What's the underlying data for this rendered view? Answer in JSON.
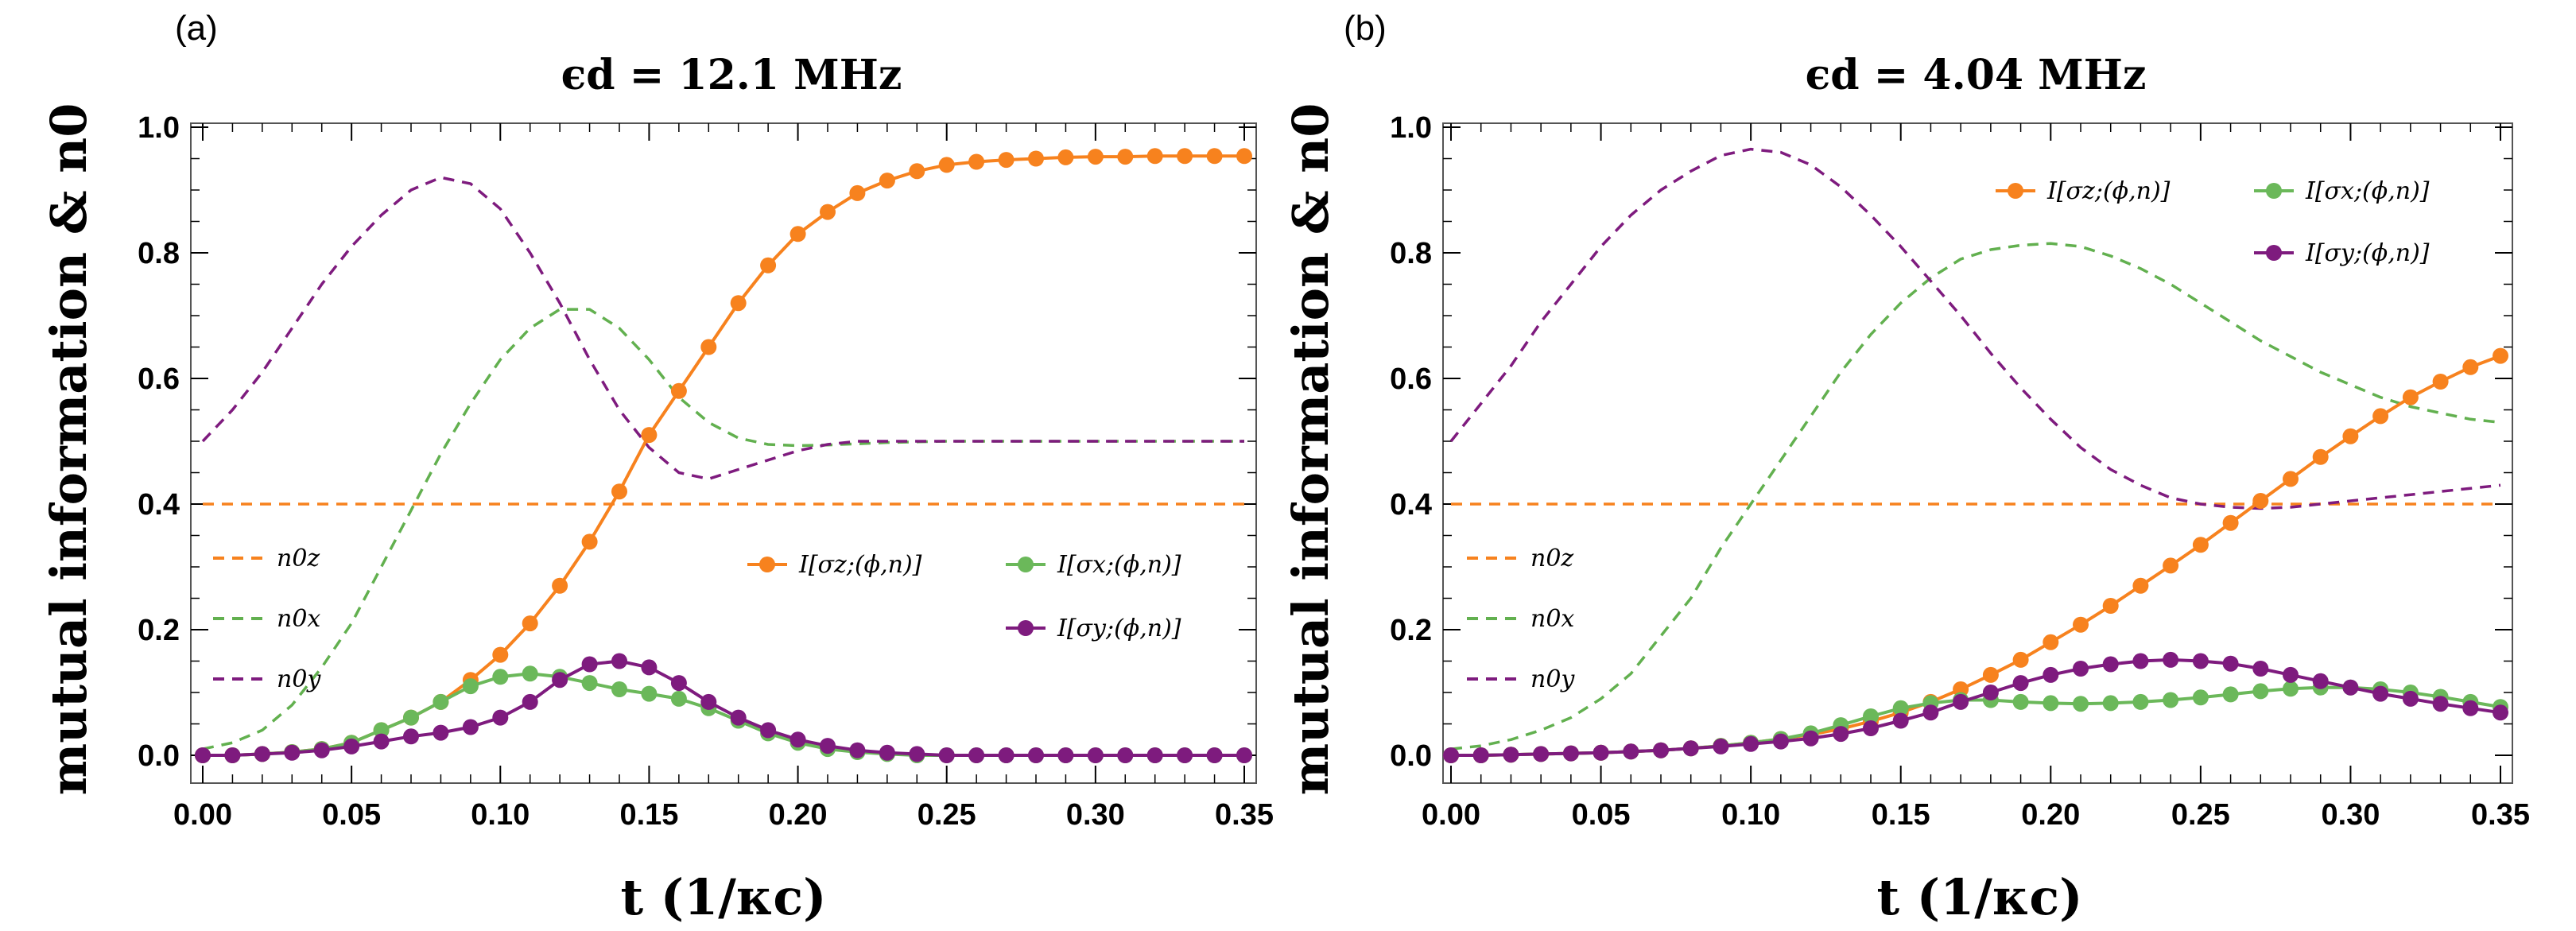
{
  "figure": {
    "colors": {
      "orange": "#F7821E",
      "green": "#6BB85A",
      "green_dash": "#62B04F",
      "purple": "#7E1B7E",
      "axis": "#000000",
      "frame": "#555555"
    }
  },
  "chart_data": [
    {
      "type": "line",
      "panel_label": "(a)",
      "title": "ϵd = 12.1 MHz",
      "xlabel": "t (1/κc)",
      "ylabel": "mutual information & n0",
      "xlim": [
        0,
        0.35
      ],
      "ylim": [
        0,
        1.0
      ],
      "xticks": [
        0.0,
        0.05,
        0.1,
        0.15,
        0.2,
        0.25,
        0.3,
        0.35
      ],
      "xtick_labels": [
        "0.00",
        "0.05",
        "0.10",
        "0.15",
        "0.20",
        "0.25",
        "0.30",
        "0.35"
      ],
      "yticks": [
        0.0,
        0.2,
        0.4,
        0.6,
        0.8,
        1.0
      ],
      "ytick_labels": [
        "0.0",
        "0.2",
        "0.4",
        "0.6",
        "0.8",
        "1.0"
      ],
      "legend_dashed": [
        "n0z",
        "n0x",
        "n0y"
      ],
      "legend_markers": [
        "I[σz;(ϕ,n)]",
        "I[σx;(ϕ,n)]",
        "I[σy;(ϕ,n)]"
      ],
      "x": [
        0.0,
        0.01,
        0.02,
        0.03,
        0.04,
        0.05,
        0.06,
        0.07,
        0.08,
        0.09,
        0.1,
        0.11,
        0.12,
        0.13,
        0.14,
        0.15,
        0.16,
        0.17,
        0.18,
        0.19,
        0.2,
        0.21,
        0.22,
        0.23,
        0.24,
        0.25,
        0.26,
        0.27,
        0.28,
        0.29,
        0.3,
        0.31,
        0.32,
        0.33,
        0.34,
        0.35
      ],
      "series": [
        {
          "name": "I[σz;(ϕ,n)]",
          "color": "orange",
          "style": "marker-line",
          "values": [
            0,
            0,
            0.002,
            0.005,
            0.01,
            0.02,
            0.04,
            0.06,
            0.085,
            0.12,
            0.16,
            0.21,
            0.27,
            0.34,
            0.42,
            0.51,
            0.58,
            0.65,
            0.72,
            0.78,
            0.83,
            0.865,
            0.895,
            0.915,
            0.93,
            0.94,
            0.945,
            0.948,
            0.95,
            0.952,
            0.953,
            0.953,
            0.954,
            0.954,
            0.954,
            0.954
          ]
        },
        {
          "name": "I[σx;(ϕ,n)]",
          "color": "green",
          "style": "marker-line",
          "values": [
            0,
            0,
            0.002,
            0.005,
            0.01,
            0.02,
            0.04,
            0.06,
            0.085,
            0.11,
            0.125,
            0.13,
            0.125,
            0.115,
            0.105,
            0.098,
            0.09,
            0.075,
            0.055,
            0.035,
            0.02,
            0.01,
            0.005,
            0.002,
            0,
            0,
            0,
            0,
            0,
            0,
            0,
            0,
            0,
            0,
            0,
            0
          ]
        },
        {
          "name": "I[σy;(ϕ,n)]",
          "color": "purple",
          "style": "marker-line",
          "values": [
            0,
            0,
            0.002,
            0.004,
            0.008,
            0.014,
            0.022,
            0.03,
            0.036,
            0.045,
            0.06,
            0.085,
            0.12,
            0.145,
            0.15,
            0.14,
            0.115,
            0.085,
            0.06,
            0.04,
            0.025,
            0.015,
            0.008,
            0.004,
            0.002,
            0,
            0,
            0,
            0,
            0,
            0,
            0,
            0,
            0,
            0,
            0
          ]
        },
        {
          "name": "n0z",
          "color": "orange",
          "style": "dashed",
          "values": [
            0.4,
            0.4,
            0.4,
            0.4,
            0.4,
            0.4,
            0.4,
            0.4,
            0.4,
            0.4,
            0.4,
            0.4,
            0.4,
            0.4,
            0.4,
            0.4,
            0.4,
            0.4,
            0.4,
            0.4,
            0.4,
            0.4,
            0.4,
            0.4,
            0.4,
            0.4,
            0.4,
            0.4,
            0.4,
            0.4,
            0.4,
            0.4,
            0.4,
            0.4,
            0.4,
            0.4
          ]
        },
        {
          "name": "n0x",
          "color": "green_dash",
          "style": "dashed",
          "values": [
            0.01,
            0.02,
            0.04,
            0.08,
            0.14,
            0.21,
            0.3,
            0.39,
            0.48,
            0.56,
            0.63,
            0.68,
            0.71,
            0.71,
            0.68,
            0.63,
            0.57,
            0.53,
            0.505,
            0.495,
            0.493,
            0.494,
            0.496,
            0.498,
            0.499,
            0.5,
            0.5,
            0.5,
            0.5,
            0.5,
            0.5,
            0.5,
            0.5,
            0.5,
            0.5,
            0.5
          ]
        },
        {
          "name": "n0y",
          "color": "purple",
          "style": "dashed",
          "values": [
            0.5,
            0.55,
            0.61,
            0.68,
            0.75,
            0.81,
            0.86,
            0.9,
            0.92,
            0.91,
            0.87,
            0.8,
            0.72,
            0.63,
            0.55,
            0.49,
            0.45,
            0.44,
            0.455,
            0.47,
            0.485,
            0.495,
            0.5,
            0.5,
            0.5,
            0.5,
            0.5,
            0.5,
            0.5,
            0.5,
            0.5,
            0.5,
            0.5,
            0.5,
            0.5,
            0.5
          ]
        }
      ]
    },
    {
      "type": "line",
      "panel_label": "(b)",
      "title": "ϵd = 4.04 MHz",
      "xlabel": "t (1/κc)",
      "ylabel": "mutual information & n0",
      "xlim": [
        0,
        0.35
      ],
      "ylim": [
        0,
        1.0
      ],
      "xticks": [
        0.0,
        0.05,
        0.1,
        0.15,
        0.2,
        0.25,
        0.3,
        0.35
      ],
      "xtick_labels": [
        "0.00",
        "0.05",
        "0.10",
        "0.15",
        "0.20",
        "0.25",
        "0.30",
        "0.35"
      ],
      "yticks": [
        0.0,
        0.2,
        0.4,
        0.6,
        0.8,
        1.0
      ],
      "ytick_labels": [
        "0.0",
        "0.2",
        "0.4",
        "0.6",
        "0.8",
        "1.0"
      ],
      "legend_dashed": [
        "n0z",
        "n0x",
        "n0y"
      ],
      "legend_markers": [
        "I[σz;(ϕ,n)]",
        "I[σx;(ϕ,n)]",
        "I[σy;(ϕ,n)]"
      ],
      "x": [
        0.0,
        0.01,
        0.02,
        0.03,
        0.04,
        0.05,
        0.06,
        0.07,
        0.08,
        0.09,
        0.1,
        0.11,
        0.12,
        0.13,
        0.14,
        0.15,
        0.16,
        0.17,
        0.18,
        0.19,
        0.2,
        0.21,
        0.22,
        0.23,
        0.24,
        0.25,
        0.26,
        0.27,
        0.28,
        0.29,
        0.3,
        0.31,
        0.32,
        0.33,
        0.34,
        0.35
      ],
      "series": [
        {
          "name": "I[σz;(ϕ,n)]",
          "color": "orange",
          "style": "marker-line",
          "values": [
            0,
            0,
            0.001,
            0.002,
            0.003,
            0.004,
            0.006,
            0.008,
            0.011,
            0.015,
            0.02,
            0.026,
            0.033,
            0.042,
            0.054,
            0.068,
            0.085,
            0.105,
            0.128,
            0.152,
            0.18,
            0.208,
            0.238,
            0.27,
            0.302,
            0.335,
            0.37,
            0.405,
            0.44,
            0.475,
            0.508,
            0.54,
            0.57,
            0.595,
            0.618,
            0.636
          ]
        },
        {
          "name": "I[σx;(ϕ,n)]",
          "color": "green",
          "style": "marker-line",
          "values": [
            0,
            0,
            0.001,
            0.002,
            0.003,
            0.004,
            0.006,
            0.008,
            0.011,
            0.015,
            0.02,
            0.026,
            0.035,
            0.048,
            0.062,
            0.075,
            0.083,
            0.088,
            0.088,
            0.085,
            0.083,
            0.082,
            0.083,
            0.085,
            0.088,
            0.092,
            0.097,
            0.102,
            0.106,
            0.108,
            0.108,
            0.105,
            0.1,
            0.093,
            0.085,
            0.077
          ]
        },
        {
          "name": "I[σy;(ϕ,n)]",
          "color": "purple",
          "style": "marker-line",
          "values": [
            0,
            0,
            0.001,
            0.002,
            0.003,
            0.004,
            0.006,
            0.008,
            0.011,
            0.014,
            0.018,
            0.022,
            0.027,
            0.034,
            0.043,
            0.055,
            0.068,
            0.085,
            0.1,
            0.115,
            0.128,
            0.138,
            0.145,
            0.15,
            0.152,
            0.15,
            0.146,
            0.138,
            0.128,
            0.118,
            0.108,
            0.098,
            0.09,
            0.082,
            0.075,
            0.068
          ]
        },
        {
          "name": "n0z",
          "color": "orange",
          "style": "dashed",
          "values": [
            0.4,
            0.4,
            0.4,
            0.4,
            0.4,
            0.4,
            0.4,
            0.4,
            0.4,
            0.4,
            0.4,
            0.4,
            0.4,
            0.4,
            0.4,
            0.4,
            0.4,
            0.4,
            0.4,
            0.4,
            0.4,
            0.4,
            0.4,
            0.4,
            0.4,
            0.4,
            0.4,
            0.4,
            0.4,
            0.4,
            0.4,
            0.4,
            0.4,
            0.4,
            0.4,
            0.4
          ]
        },
        {
          "name": "n0x",
          "color": "green_dash",
          "style": "dashed",
          "values": [
            0.01,
            0.015,
            0.025,
            0.04,
            0.06,
            0.09,
            0.13,
            0.19,
            0.25,
            0.33,
            0.4,
            0.47,
            0.54,
            0.61,
            0.67,
            0.72,
            0.76,
            0.79,
            0.805,
            0.812,
            0.815,
            0.81,
            0.795,
            0.775,
            0.75,
            0.72,
            0.69,
            0.66,
            0.635,
            0.61,
            0.59,
            0.57,
            0.555,
            0.545,
            0.535,
            0.53
          ]
        },
        {
          "name": "n0y",
          "color": "purple",
          "style": "dashed",
          "values": [
            0.5,
            0.56,
            0.62,
            0.69,
            0.75,
            0.81,
            0.86,
            0.9,
            0.93,
            0.955,
            0.965,
            0.96,
            0.94,
            0.905,
            0.86,
            0.81,
            0.755,
            0.7,
            0.64,
            0.585,
            0.535,
            0.49,
            0.455,
            0.43,
            0.41,
            0.4,
            0.395,
            0.393,
            0.395,
            0.4,
            0.405,
            0.41,
            0.415,
            0.42,
            0.425,
            0.43
          ]
        }
      ]
    }
  ]
}
